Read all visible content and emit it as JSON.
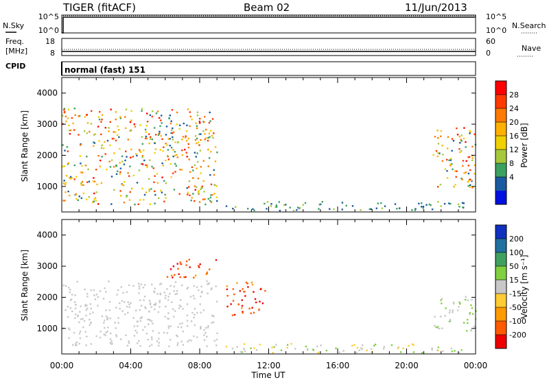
{
  "header": {
    "radar": "TIGER (fitACF)",
    "beam": "Beam 02",
    "date": "11/Jun/2013"
  },
  "strips": {
    "nsky_label": "N.Sky",
    "nsky_ticks": [
      "10^5",
      "10^0"
    ],
    "nsearch_label": "N.Search",
    "nsearch_ticks": [
      "10^5",
      "10^0"
    ],
    "freq_label_1": "Freq.",
    "freq_label_2": "[MHz]",
    "freq_ticks": [
      "18",
      "8"
    ],
    "nave_label": "Nave",
    "nave_ticks": [
      "60",
      "0"
    ],
    "cpid_label": "CPID",
    "cpid_value": "normal (fast) 151"
  },
  "axes": {
    "x_ticks": [
      "00:00",
      "04:00",
      "08:00",
      "12:00",
      "16:00",
      "20:00",
      "00:00"
    ],
    "xlabel": "Time UT",
    "ylabel": "Slant Range [km]",
    "y_ticks": [
      "4000",
      "3000",
      "2000",
      "1000"
    ]
  },
  "colorbars": {
    "power_label": "Power [dB]",
    "power_ticks": [
      "28",
      "24",
      "20",
      "16",
      "12",
      "8",
      "4"
    ],
    "power_colors": [
      "#ff0000",
      "#ff3a00",
      "#ff7a00",
      "#ffb000",
      "#f0d000",
      "#a6c83c",
      "#3ca060",
      "#1a5aa0",
      "#0010e0"
    ],
    "velocity_label": "Velocity [m s⁻¹]",
    "velocity_ticks": [
      "200",
      "100",
      "50",
      "15",
      "-15",
      "-50",
      "-100",
      "-200"
    ],
    "velocity_colors": [
      "#1030c0",
      "#2070a0",
      "#40a060",
      "#80d040",
      "#c8c8c8",
      "#ffcc33",
      "#ff9a00",
      "#ff5a00",
      "#ee0000"
    ]
  },
  "chart_data": [
    {
      "type": "heatmap",
      "title": "Power [dB]",
      "xlabel": "Time UT",
      "ylabel": "Slant Range [km]",
      "xlim": [
        "00:00",
        "24:00"
      ],
      "ylim": [
        180,
        4500
      ],
      "zlim": [
        0,
        30
      ],
      "regions": [
        {
          "t_start": 0.0,
          "t_end": 9.0,
          "range_km": [
            400,
            3500
          ],
          "power_db": [
            4,
            28
          ]
        },
        {
          "t_start": 9.5,
          "t_end": 23.5,
          "range_km": [
            200,
            500
          ],
          "power_db": [
            4,
            12
          ]
        },
        {
          "t_start": 21.5,
          "t_end": 24.0,
          "range_km": [
            900,
            2900
          ],
          "power_db": [
            4,
            28
          ]
        }
      ]
    },
    {
      "type": "heatmap",
      "title": "Velocity [m s⁻¹]",
      "xlabel": "Time UT",
      "ylabel": "Slant Range [km]",
      "xlim": [
        "00:00",
        "24:00"
      ],
      "ylim": [
        180,
        4500
      ],
      "zlim": [
        -200,
        200
      ],
      "regions": [
        {
          "t_start": 0.0,
          "t_end": 9.0,
          "range_km": [
            400,
            2500
          ],
          "velocity_ms": [
            -15,
            15
          ]
        },
        {
          "t_start": 6.0,
          "t_end": 9.0,
          "range_km": [
            2600,
            3200
          ],
          "velocity_ms": [
            -200,
            -100
          ]
        },
        {
          "t_start": 9.5,
          "t_end": 11.8,
          "range_km": [
            1400,
            2500
          ],
          "velocity_ms": [
            -200,
            -100
          ]
        },
        {
          "t_start": 9.5,
          "t_end": 23.5,
          "range_km": [
            200,
            500
          ],
          "velocity_ms": [
            -50,
            50
          ]
        },
        {
          "t_start": 21.5,
          "t_end": 24.0,
          "range_km": [
            900,
            2000
          ],
          "velocity_ms": [
            -15,
            50
          ]
        }
      ]
    }
  ]
}
